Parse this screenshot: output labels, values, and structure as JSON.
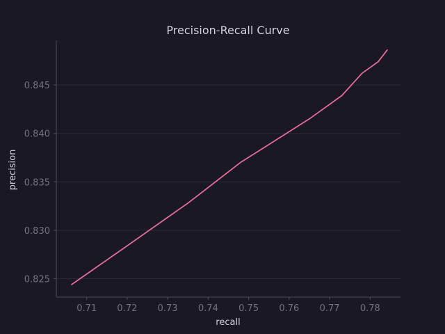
{
  "chart_data": {
    "type": "line",
    "title": "Precision-Recall Curve",
    "xlabel": "recall",
    "ylabel": "precision",
    "xlim": [
      0.7025,
      0.7875
    ],
    "ylim": [
      0.8231,
      0.8496
    ],
    "xticks": [
      0.71,
      0.72,
      0.73,
      0.74,
      0.75,
      0.76,
      0.77,
      0.78
    ],
    "xtick_labels": [
      "0.71",
      "0.72",
      "0.73",
      "0.74",
      "0.75",
      "0.76",
      "0.77",
      "0.78"
    ],
    "yticks": [
      0.825,
      0.83,
      0.835,
      0.84,
      0.845
    ],
    "ytick_labels": [
      "0.825",
      "0.830",
      "0.835",
      "0.840",
      "0.845"
    ],
    "grid": "horizontal",
    "legend": "none",
    "series": [
      {
        "x": [
          0.7063,
          0.72,
          0.735,
          0.748,
          0.765,
          0.773,
          0.778,
          0.782,
          0.7842
        ],
        "y": [
          0.8244,
          0.8284,
          0.8328,
          0.837,
          0.8415,
          0.8439,
          0.8462,
          0.8474,
          0.8486
        ],
        "color": "#e46c96"
      }
    ]
  },
  "colors": {
    "background": "#1b1825",
    "grid": "#2a2737",
    "axis": "#4e4a5c",
    "tick_text": "#75707f",
    "label_text": "#d3cfdb",
    "title_text": "#d3cfdb"
  }
}
